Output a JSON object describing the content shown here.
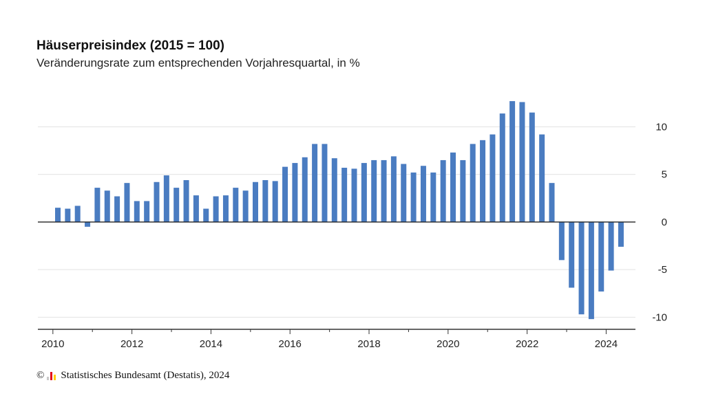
{
  "title": "Häuserpreisindex (2015 = 100)",
  "subtitle": "Veränderungsrate zum entsprechenden Vorjahresquartal, in %",
  "source": {
    "copyright_symbol": "©",
    "text": "Statistisches Bundesamt (Destatis), 2024"
  },
  "colors": {
    "bar": "#4a7cc1",
    "grid": "#e2e2e2",
    "zero_line": "#222222",
    "axis": "#333333",
    "logo": [
      "#c9c9c9",
      "#e2001a",
      "#ffcc00"
    ]
  },
  "chart_data": {
    "type": "bar",
    "x_ticks": [
      "2010",
      "2012",
      "2014",
      "2016",
      "2018",
      "2020",
      "2022",
      "2024"
    ],
    "y_ticks": [
      10,
      5,
      0,
      -5,
      -10
    ],
    "ylim": [
      -11.2,
      13.5
    ],
    "grid": true,
    "y_axis_position": "right",
    "series": [
      {
        "values": [
          1.5,
          1.4,
          1.7,
          -0.5,
          3.6,
          3.3,
          2.7,
          4.1,
          2.2,
          2.2,
          4.2,
          4.9,
          3.6,
          4.4,
          2.8,
          1.4,
          2.7,
          2.8,
          3.6,
          3.3,
          4.2,
          4.4,
          4.3,
          5.8,
          6.2,
          6.8,
          8.2,
          8.2,
          6.7,
          5.7,
          5.6,
          6.2,
          6.5,
          6.5,
          6.9,
          6.1,
          5.2,
          5.9,
          5.2,
          6.5,
          7.3,
          6.5,
          8.2,
          8.6,
          9.2,
          11.4,
          12.7,
          12.6,
          11.5,
          9.2,
          4.1,
          -4.0,
          -6.9,
          -9.7,
          -10.2,
          -7.3,
          -5.1,
          -2.6
        ]
      }
    ]
  }
}
